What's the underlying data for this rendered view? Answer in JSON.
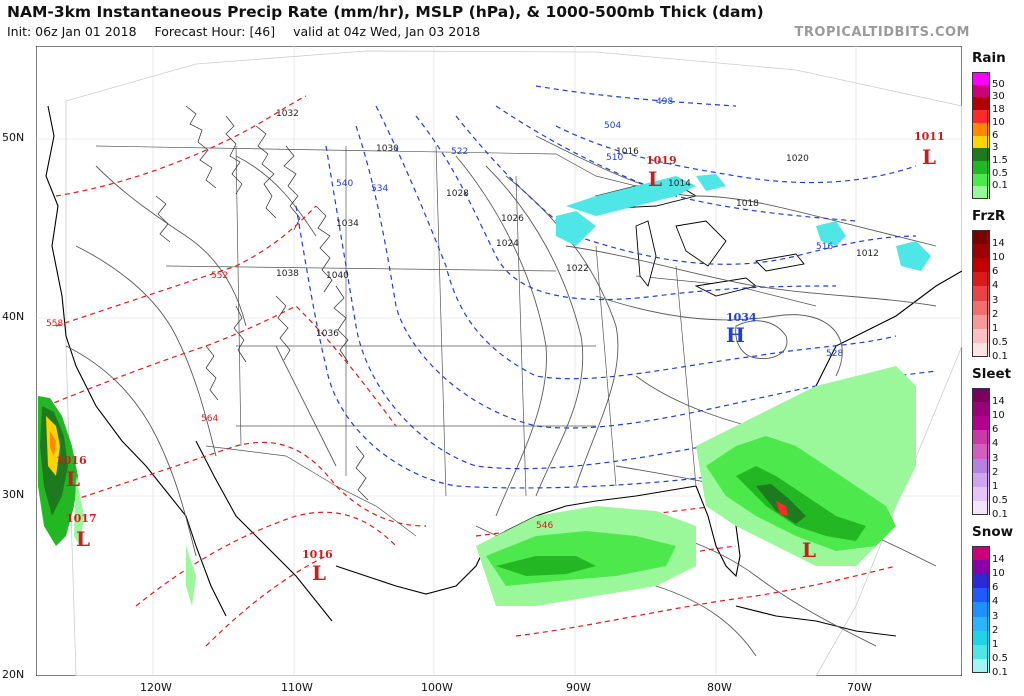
{
  "header": {
    "title": "NAM-3km Instantaneous Precip Rate (mm/hr), MSLP (hPa), & 1000-500mb Thick (dam)",
    "init": "Init: 06z Jan 01 2018",
    "forecast_hour": "Forecast Hour: [46]",
    "valid": "valid at 04z Wed, Jan 03 2018",
    "brand": "TROPICALTIDBITS.COM"
  },
  "map": {
    "lat_labels": [
      "50N",
      "40N",
      "30N",
      "20N"
    ],
    "lon_labels": [
      "120W",
      "110W",
      "100W",
      "90W",
      "80W",
      "70W"
    ],
    "highs": [
      {
        "label": "H",
        "value": "1034",
        "place": "ohio-valley"
      }
    ],
    "lows": [
      {
        "label": "L",
        "value": "1011",
        "place": "quebec"
      },
      {
        "label": "L",
        "value": "1019",
        "place": "lake-superior"
      },
      {
        "label": "L",
        "value": "1016",
        "place": "pacific-off-california"
      },
      {
        "label": "L",
        "value": "1017",
        "place": "pacific-off-baja"
      },
      {
        "label": "L",
        "value": "1016",
        "place": "gulf-of-california"
      },
      {
        "label": "L",
        "value": "",
        "place": "atlantic-off-southeast"
      }
    ],
    "isobar_labels": [
      "1032",
      "1030",
      "1028",
      "1026",
      "1024",
      "1022",
      "1020",
      "1018",
      "1016",
      "1014",
      "1036",
      "1034",
      "1038",
      "1040",
      "1012"
    ],
    "thickness_labels": [
      "498",
      "504",
      "510",
      "516",
      "522",
      "528",
      "534",
      "540",
      "546",
      "552",
      "558",
      "564"
    ],
    "colors": {
      "isobar": "#5a5a5a",
      "thick_cold": "#1f3fd6",
      "thick_warm": "#e01b1b",
      "coast": "#000000",
      "border": "#555555"
    }
  },
  "legend": {
    "rain": {
      "title": "Rain",
      "labels": [
        "50",
        "30",
        "18",
        "10",
        "6",
        "3",
        "1.5",
        "0.5",
        "0.1"
      ],
      "colors": [
        "#ff00ff",
        "#cc0077",
        "#b00000",
        "#ff2a2a",
        "#ff8a00",
        "#ffd400",
        "#1e7a1e",
        "#23b823",
        "#4ce84c",
        "#9af79a"
      ]
    },
    "frzr": {
      "title": "FrzR",
      "labels": [
        "14",
        "10",
        "6",
        "4",
        "3",
        "2",
        "1",
        "0.5",
        "0.1"
      ],
      "colors": [
        "#7a0000",
        "#9c0000",
        "#c00000",
        "#d81b1b",
        "#e74545",
        "#f06f6f",
        "#f59a9a",
        "#fbc1c1",
        "#ffe2e2"
      ]
    },
    "sleet": {
      "title": "Sleet",
      "labels": [
        "14",
        "10",
        "6",
        "4",
        "3",
        "2",
        "1",
        "0.5",
        "0.1"
      ],
      "colors": [
        "#7a005e",
        "#9a007a",
        "#b30090",
        "#c83aa8",
        "#d25fc0",
        "#b483e0",
        "#cfa5f0",
        "#e3c6f7",
        "#f3e6fc"
      ]
    },
    "snow": {
      "title": "Snow",
      "labels": [
        "14",
        "10",
        "6",
        "4",
        "3",
        "2",
        "1",
        "0.5",
        "0.1"
      ],
      "colors": [
        "#cc0077",
        "#8a00aa",
        "#2a2ad6",
        "#1d5bff",
        "#1e90ff",
        "#29b6ff",
        "#22d3e6",
        "#4ee6e6",
        "#a6f3f3"
      ]
    }
  }
}
